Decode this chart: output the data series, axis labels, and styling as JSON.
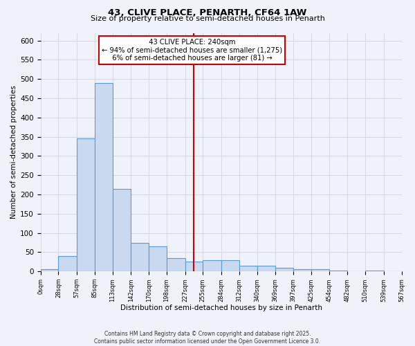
{
  "title_line1": "43, CLIVE PLACE, PENARTH, CF64 1AW",
  "title_line2": "Size of property relative to semi-detached houses in Penarth",
  "xlabel": "Distribution of semi-detached houses by size in Penarth",
  "ylabel": "Number of semi-detached properties",
  "bin_edges": [
    0,
    28,
    57,
    85,
    113,
    142,
    170,
    198,
    227,
    255,
    284,
    312,
    340,
    369,
    397,
    425,
    454,
    482,
    510,
    539,
    567
  ],
  "bar_heights": [
    5,
    40,
    345,
    490,
    215,
    75,
    65,
    35,
    25,
    30,
    30,
    15,
    15,
    10,
    5,
    5,
    2,
    0,
    2,
    0
  ],
  "bar_color": "#c8d9f0",
  "bar_edge_color": "#5b9bd5",
  "bg_color": "#f0f2fa",
  "plot_bg_color": "#f0f2fa",
  "grid_color": "#ccccdd",
  "vline_x": 240,
  "vline_color": "#cc0000",
  "property_label": "43 CLIVE PLACE: 240sqm",
  "smaller_pct": 94,
  "smaller_count": "1,275",
  "larger_pct": 6,
  "larger_count": 81,
  "annotation_box_color": "#ffffff",
  "annotation_box_edge": "#cc0000",
  "ylim": [
    0,
    620
  ],
  "yticks": [
    0,
    50,
    100,
    150,
    200,
    250,
    300,
    350,
    400,
    450,
    500,
    550,
    600
  ],
  "tick_labels": [
    "0sqm",
    "28sqm",
    "57sqm",
    "85sqm",
    "113sqm",
    "142sqm",
    "170sqm",
    "198sqm",
    "227sqm",
    "255sqm",
    "284sqm",
    "312sqm",
    "340sqm",
    "369sqm",
    "397sqm",
    "425sqm",
    "454sqm",
    "482sqm",
    "510sqm",
    "539sqm",
    "567sqm"
  ],
  "footer_line1": "Contains HM Land Registry data © Crown copyright and database right 2025.",
  "footer_line2": "Contains public sector information licensed under the Open Government Licence 3.0."
}
